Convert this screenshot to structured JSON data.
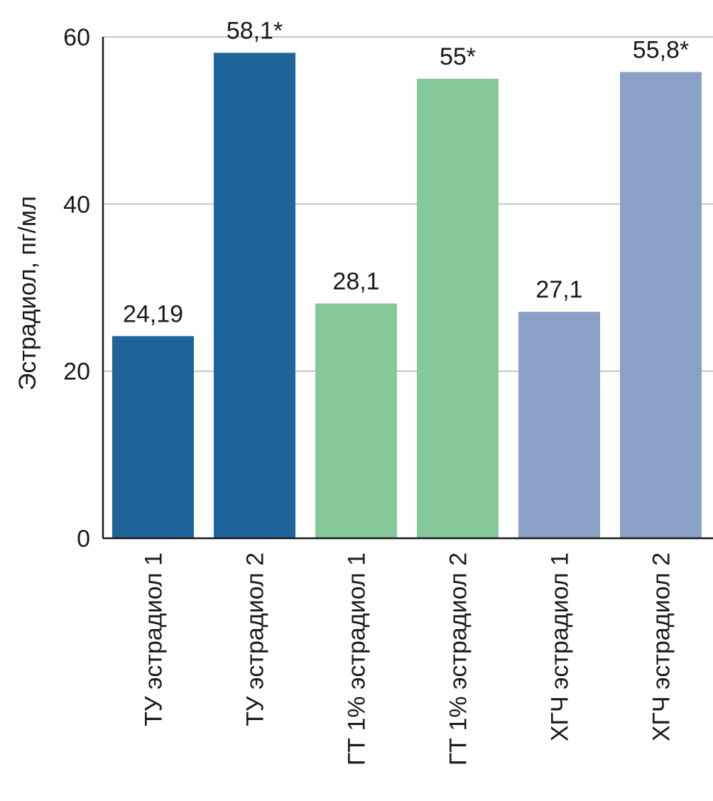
{
  "chart_data": {
    "type": "bar",
    "ylabel": "Эстрадиол, пг/мл",
    "ylim": [
      0,
      60
    ],
    "yticks": [
      0,
      20,
      40,
      60
    ],
    "grid": true,
    "categories": [
      "ТУ эстрадиол 1",
      "ТУ эстрадиол 2",
      "ГТ 1% эстрадиол 1",
      "ГТ 1% эстрадиол 2",
      "ХГЧ эстрадиол 1",
      "ХГЧ эстрадиол 2"
    ],
    "values": [
      24.19,
      58.1,
      28.1,
      55,
      27.1,
      55.8
    ],
    "data_labels": [
      "24,19",
      "58,1*",
      "28,1",
      "55*",
      "27,1",
      "55,8*"
    ],
    "colors": [
      "#1f639b",
      "#1f639b",
      "#85c99b",
      "#85c99b",
      "#8ba0c6",
      "#8ba0c6"
    ],
    "gridline_color": "#b3b3b3",
    "axis_color": "#1a1a1a"
  }
}
